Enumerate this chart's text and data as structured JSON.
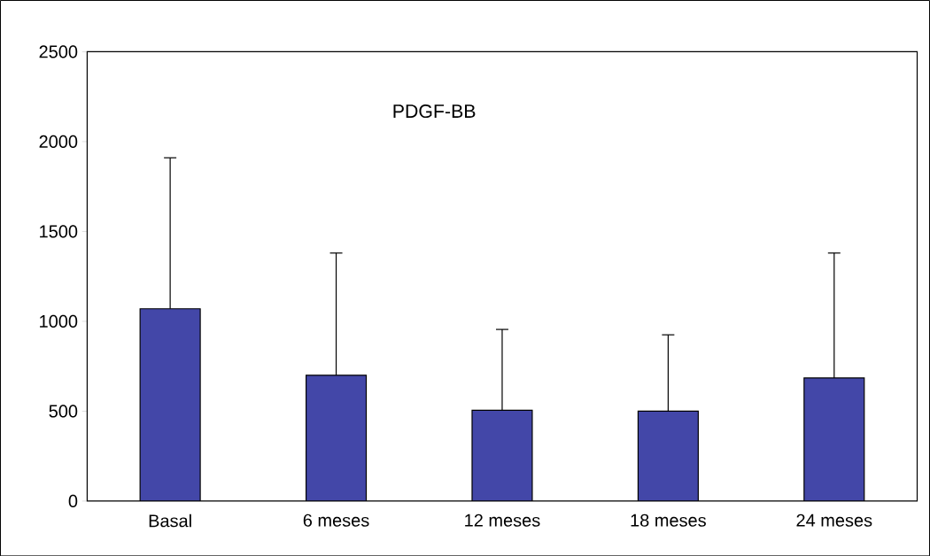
{
  "chart_data": {
    "type": "bar",
    "title": "PDGF-BB",
    "categories": [
      "Basal",
      "6 meses",
      "12 meses",
      "18 meses",
      "24 meses"
    ],
    "values": [
      1070,
      700,
      505,
      500,
      685
    ],
    "errors": [
      [
        1070,
        1910
      ],
      [
        700,
        1380
      ],
      [
        505,
        955
      ],
      [
        500,
        925
      ],
      [
        685,
        1380
      ]
    ],
    "color": "#4347a8",
    "ylim": [
      0,
      2500
    ],
    "yticks": [
      0,
      500,
      1000,
      1500,
      2000,
      2500
    ],
    "grid": false
  }
}
